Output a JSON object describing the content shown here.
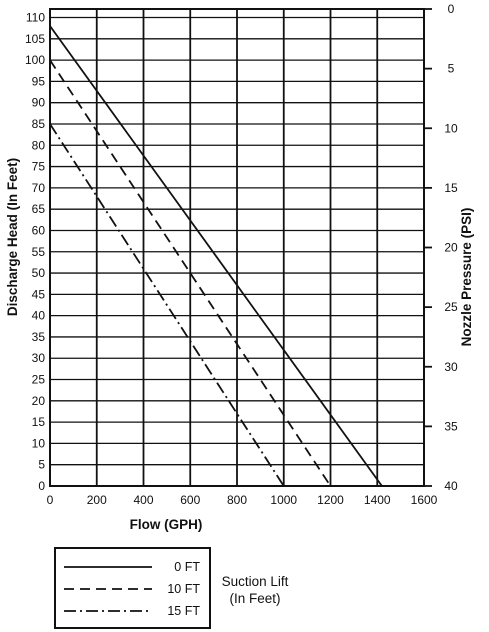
{
  "chart_data": {
    "type": "line",
    "title": "",
    "xlabel": "Flow (GPH)",
    "ylabel": "Discharge Head (In Feet)",
    "y2label": "Nozzle Pressure (PSI)",
    "xlim": [
      0,
      1600
    ],
    "ylim": [
      0,
      112
    ],
    "y2lim": [
      0,
      40
    ],
    "xticks": [
      0,
      200,
      400,
      600,
      800,
      1000,
      1200,
      1400,
      1600
    ],
    "yticks": [
      0,
      5,
      10,
      15,
      20,
      25,
      30,
      35,
      40,
      45,
      50,
      55,
      60,
      65,
      70,
      75,
      80,
      85,
      90,
      95,
      100,
      105,
      110
    ],
    "y2ticks": [
      0,
      5,
      10,
      15,
      20,
      25,
      30,
      35,
      40
    ],
    "grid": true,
    "series": [
      {
        "name": "0 FT",
        "dash": "solid",
        "x": [
          0,
          1420
        ],
        "y": [
          108,
          0
        ]
      },
      {
        "name": "10 FT",
        "dash": "dashed",
        "x": [
          0,
          1200
        ],
        "y": [
          100,
          0
        ]
      },
      {
        "name": "15 FT",
        "dash": "dash-dot",
        "x": [
          0,
          1000
        ],
        "y": [
          85,
          0
        ]
      }
    ],
    "legend": {
      "position": "bottom-left",
      "title_lines": [
        "Suction Lift",
        "(In Feet)"
      ]
    }
  }
}
